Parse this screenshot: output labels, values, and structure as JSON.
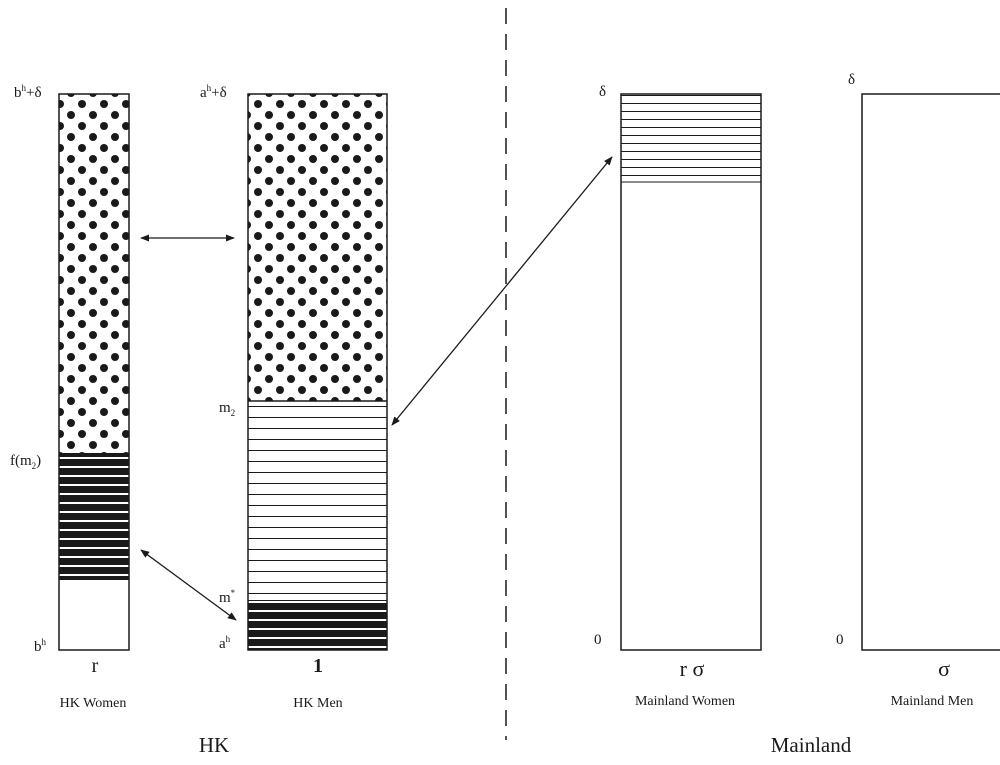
{
  "hk": {
    "region_label": "HK",
    "women": {
      "width_label": "r",
      "caption": "HK Women",
      "top_label": {
        "base": "b",
        "sup": "h",
        "tail": "+δ"
      },
      "mid_label": {
        "base": "f(m",
        "sub": "2",
        "tail": ")"
      },
      "bottom_label": {
        "base": "b",
        "sup": "h"
      }
    },
    "men": {
      "width_label": "1",
      "caption": "HK Men",
      "top_label": {
        "base": "a",
        "sup": "h",
        "tail": "+δ"
      },
      "m2_label": {
        "base": "m",
        "sub": "2"
      },
      "mstar_label": {
        "base": "m",
        "sup": "*"
      },
      "bottom_label": {
        "base": "a",
        "sup": "h"
      }
    }
  },
  "mainland": {
    "region_label": "Mainland",
    "women": {
      "width_label": "r σ",
      "caption": "Mainland Women",
      "top_label": "δ",
      "bottom_label": "0"
    },
    "men": {
      "width_label": "σ",
      "caption": "Mainland Men",
      "top_label": "δ",
      "bottom_label": "0"
    }
  },
  "patterns": [
    "dotted",
    "light-hatch",
    "dense-hatch",
    "blank"
  ],
  "colors": {
    "ink": "#1a1a1a",
    "background": "#ffffff"
  }
}
